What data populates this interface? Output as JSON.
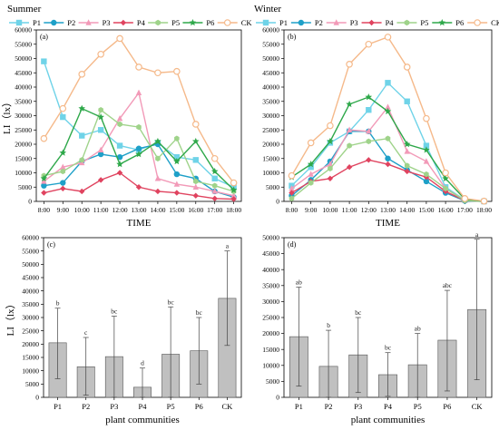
{
  "chart_data": [
    {
      "type": "line",
      "panel_id": "(a)",
      "title": "Summer",
      "xlabel": "TIME",
      "ylabel": "LI（lx）",
      "x": [
        "8:00",
        "9:00",
        "10:00",
        "11:00",
        "12:00",
        "13:00",
        "14:00",
        "15:00",
        "16:00",
        "17:00",
        "18:00"
      ],
      "ylim": [
        0,
        60000
      ],
      "yticks": [
        "0",
        "5000",
        "10000",
        "15000",
        "20000",
        "25000",
        "30000",
        "35000",
        "40000",
        "45000",
        "50000",
        "55000",
        "60000"
      ],
      "legend": "top",
      "series": [
        {
          "name": "P1",
          "color": "#6FD3E8",
          "marker": "square",
          "values": [
            49000,
            29500,
            23000,
            25000,
            19500,
            18000,
            20500,
            15500,
            14500,
            8000,
            5000
          ]
        },
        {
          "name": "P2",
          "color": "#1EA0C8",
          "marker": "circle",
          "values": [
            5500,
            6500,
            14000,
            16500,
            15500,
            18500,
            20000,
            9500,
            8000,
            3500,
            1500
          ]
        },
        {
          "name": "P3",
          "color": "#F29AB8",
          "marker": "triangle",
          "values": [
            7000,
            12000,
            13500,
            18000,
            29000,
            38000,
            8000,
            6000,
            5000,
            3500,
            2000
          ]
        },
        {
          "name": "P4",
          "color": "#E0435F",
          "marker": "diamond",
          "values": [
            3000,
            4500,
            3500,
            7500,
            10000,
            5000,
            3500,
            3000,
            2000,
            1000,
            800
          ]
        },
        {
          "name": "P5",
          "color": "#9FD38A",
          "marker": "hexagon",
          "values": [
            9000,
            10500,
            14500,
            32000,
            27000,
            26000,
            15000,
            22000,
            7000,
            5500,
            3500
          ]
        },
        {
          "name": "P6",
          "color": "#2EA84A",
          "marker": "star",
          "values": [
            8000,
            17000,
            32500,
            29500,
            13000,
            16500,
            21000,
            14000,
            21000,
            10500,
            4000
          ]
        },
        {
          "name": "CK",
          "color": "#F5B98A",
          "marker": "circle-open",
          "values": [
            22000,
            32500,
            44500,
            51500,
            57000,
            47000,
            45000,
            45500,
            27000,
            15000,
            6500
          ]
        }
      ]
    },
    {
      "type": "line",
      "panel_id": "(b)",
      "title": "Winter",
      "xlabel": "TIME",
      "ylabel": "",
      "x": [
        "8:00",
        "9:00",
        "10:00",
        "11:00",
        "12:00",
        "13:00",
        "14:00",
        "15:00",
        "16:00",
        "17:00",
        "18:00"
      ],
      "ylim": [
        0,
        60000
      ],
      "yticks": [
        "0",
        "5000",
        "10000",
        "15000",
        "20000",
        "25000",
        "30000",
        "35000",
        "40000",
        "45000",
        "50000",
        "55000",
        "60000"
      ],
      "legend": "top",
      "series": [
        {
          "name": "P1",
          "color": "#6FD3E8",
          "marker": "square",
          "values": [
            5500,
            12000,
            20500,
            24500,
            32000,
            41500,
            35000,
            19500,
            5000,
            500,
            0
          ]
        },
        {
          "name": "P2",
          "color": "#1EA0C8",
          "marker": "circle",
          "values": [
            2000,
            7500,
            14000,
            24500,
            24500,
            15000,
            11000,
            7000,
            3000,
            200,
            0
          ]
        },
        {
          "name": "P3",
          "color": "#F29AB8",
          "marker": "triangle",
          "values": [
            4500,
            9500,
            13000,
            25000,
            24500,
            33000,
            17500,
            14000,
            4500,
            400,
            0
          ]
        },
        {
          "name": "P4",
          "color": "#E0435F",
          "marker": "diamond",
          "values": [
            3000,
            7000,
            8000,
            12000,
            14500,
            13000,
            10500,
            8500,
            3500,
            300,
            0
          ]
        },
        {
          "name": "P5",
          "color": "#9FD38A",
          "marker": "hexagon",
          "values": [
            1000,
            6500,
            11500,
            19500,
            21000,
            22000,
            12500,
            9500,
            4500,
            300,
            0
          ]
        },
        {
          "name": "P6",
          "color": "#2EA84A",
          "marker": "star",
          "values": [
            8500,
            13000,
            21000,
            34000,
            36500,
            31500,
            20000,
            18000,
            8000,
            800,
            0
          ]
        },
        {
          "name": "CK",
          "color": "#F5B98A",
          "marker": "circle-open",
          "values": [
            9000,
            20500,
            26500,
            48000,
            55000,
            57500,
            47000,
            29000,
            10000,
            1000,
            100
          ]
        }
      ]
    },
    {
      "type": "bar",
      "panel_id": "(c)",
      "xlabel": "plant communities",
      "ylabel": "LI（lx）",
      "categories": [
        "P1",
        "P2",
        "P3",
        "P4",
        "P5",
        "P6",
        "CK"
      ],
      "values": [
        20500,
        11500,
        15300,
        3800,
        16200,
        17500,
        37200
      ],
      "error_upper": [
        33500,
        22500,
        30500,
        11000,
        34000,
        30000,
        55000
      ],
      "error_lower": [
        7000,
        800,
        0,
        0,
        0,
        5000,
        19500
      ],
      "significance": [
        "b",
        "c",
        "bc",
        "d",
        "bc",
        "bc",
        "a"
      ],
      "ylim": [
        0,
        60000
      ],
      "yticks": [
        "0",
        "5000",
        "10000",
        "15000",
        "20000",
        "25000",
        "30000",
        "35000",
        "40000",
        "45000",
        "50000",
        "55000",
        "60000"
      ],
      "bar_color": "#C0C0C0"
    },
    {
      "type": "bar",
      "panel_id": "(d)",
      "xlabel": "plant communities",
      "ylabel": "",
      "categories": [
        "P1",
        "P2",
        "P3",
        "P4",
        "P5",
        "P6",
        "CK"
      ],
      "values": [
        19000,
        9700,
        13300,
        7100,
        10200,
        17900,
        27500
      ],
      "error_upper": [
        34500,
        21000,
        25000,
        14000,
        20000,
        33500,
        49500
      ],
      "error_lower": [
        3500,
        0,
        1500,
        300,
        0,
        2000,
        5500
      ],
      "significance": [
        "ab",
        "b",
        "bc",
        "bc",
        "ab",
        "abc",
        "a"
      ],
      "ylim": [
        0,
        50000
      ],
      "yticks": [
        "0",
        "5000",
        "10000",
        "15000",
        "20000",
        "25000",
        "30000",
        "35000",
        "40000",
        "45000",
        "50000"
      ],
      "bar_color": "#C0C0C0"
    }
  ]
}
